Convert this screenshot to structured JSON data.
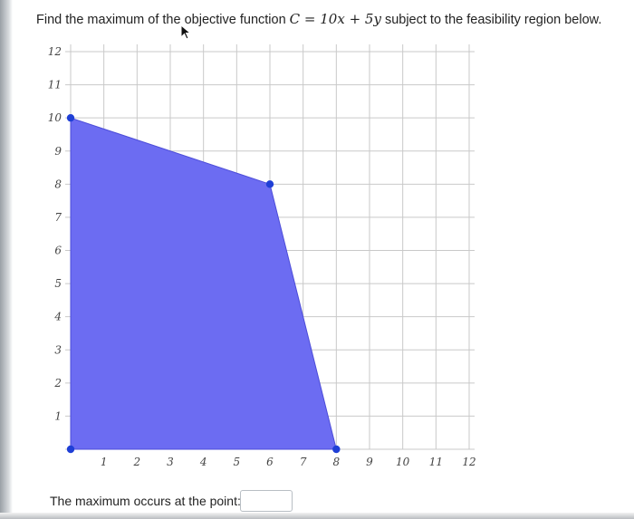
{
  "question": {
    "prefix": "Find the maximum of the objective function ",
    "formula": "C = 10x + 5y",
    "suffix": " subject to the feasibility region below."
  },
  "answer": {
    "label": "The maximum occurs at the point:",
    "value": "",
    "placeholder": ""
  },
  "chart_data": {
    "type": "area",
    "xlim": [
      0,
      12
    ],
    "ylim": [
      0,
      12
    ],
    "xticks": [
      "1",
      "2",
      "3",
      "4",
      "5",
      "6",
      "7",
      "8",
      "9",
      "10",
      "11",
      "12"
    ],
    "yticks": [
      "1",
      "2",
      "3",
      "4",
      "5",
      "6",
      "7",
      "8",
      "9",
      "10",
      "11",
      "12"
    ],
    "grid": true,
    "region_color": "#6c6cf2",
    "vertex_color": "#1f3fd6",
    "feasible_region_vertices": [
      {
        "x": 0,
        "y": 0
      },
      {
        "x": 0,
        "y": 10
      },
      {
        "x": 6,
        "y": 8
      },
      {
        "x": 8,
        "y": 0
      }
    ]
  }
}
